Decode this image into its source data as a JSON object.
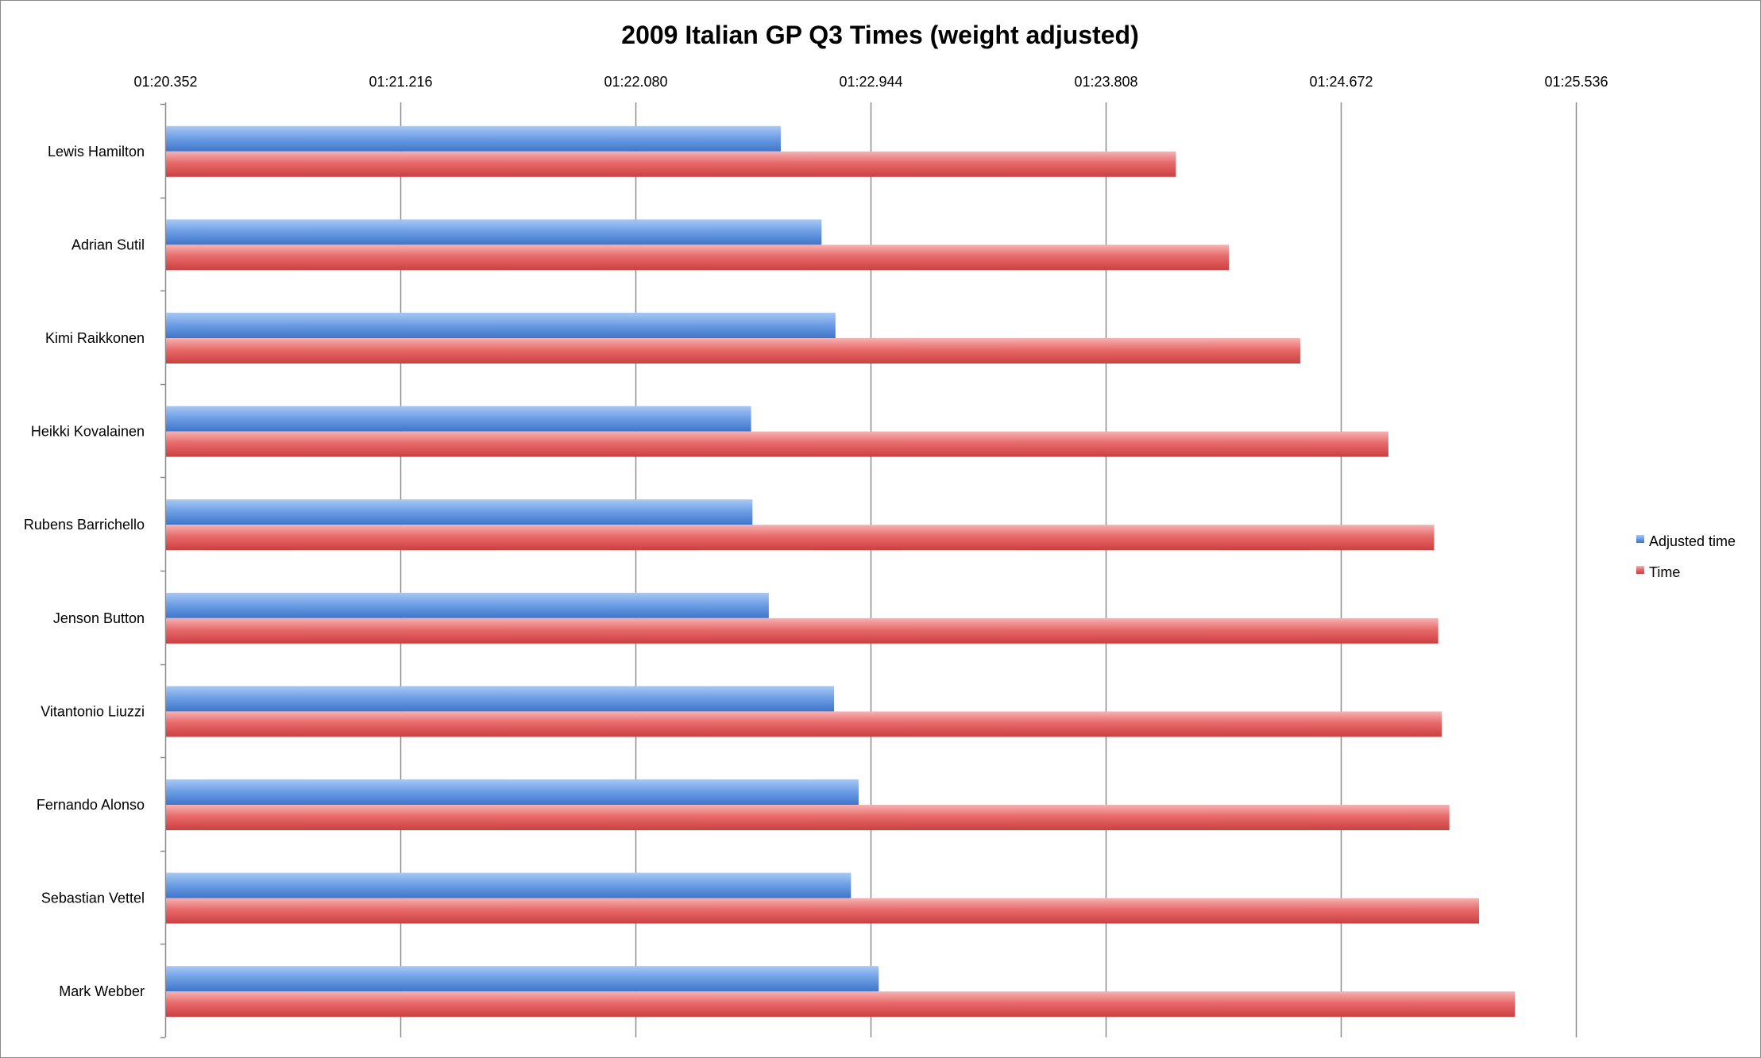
{
  "chart_data": {
    "type": "bar",
    "orientation": "horizontal",
    "title": "2009 Italian GP Q3 Times (weight adjusted)",
    "xlabel": "",
    "ylabel": "",
    "x_axis_position": "top",
    "xlim_seconds": [
      80.352,
      85.536
    ],
    "tick_step_seconds": 0.864,
    "tick_labels": [
      "01:20.352",
      "01:21.216",
      "01:22.080",
      "01:22.944",
      "01:23.808",
      "01:24.672",
      "01:25.536"
    ],
    "grid": true,
    "legend_position": "right",
    "categories": [
      "Lewis Hamilton",
      "Adrian Sutil",
      "Kimi Raikkonen",
      "Heikki Kovalainen",
      "Rubens Barrichello",
      "Jenson Button",
      "Vitantonio Liuzzi",
      "Fernando Alonso",
      "Sebastian Vettel",
      "Mark Webber"
    ],
    "series": [
      {
        "name": "Adjusted time",
        "color": "#4a86d8",
        "values": [
          82.614,
          82.764,
          82.815,
          82.505,
          82.51,
          82.57,
          82.81,
          82.9,
          82.872,
          82.974
        ]
      },
      {
        "name": "Time",
        "color": "#d9474b",
        "values": [
          84.066,
          84.261,
          84.523,
          84.847,
          85.015,
          85.03,
          85.043,
          85.071,
          85.18,
          85.312
        ]
      }
    ]
  }
}
